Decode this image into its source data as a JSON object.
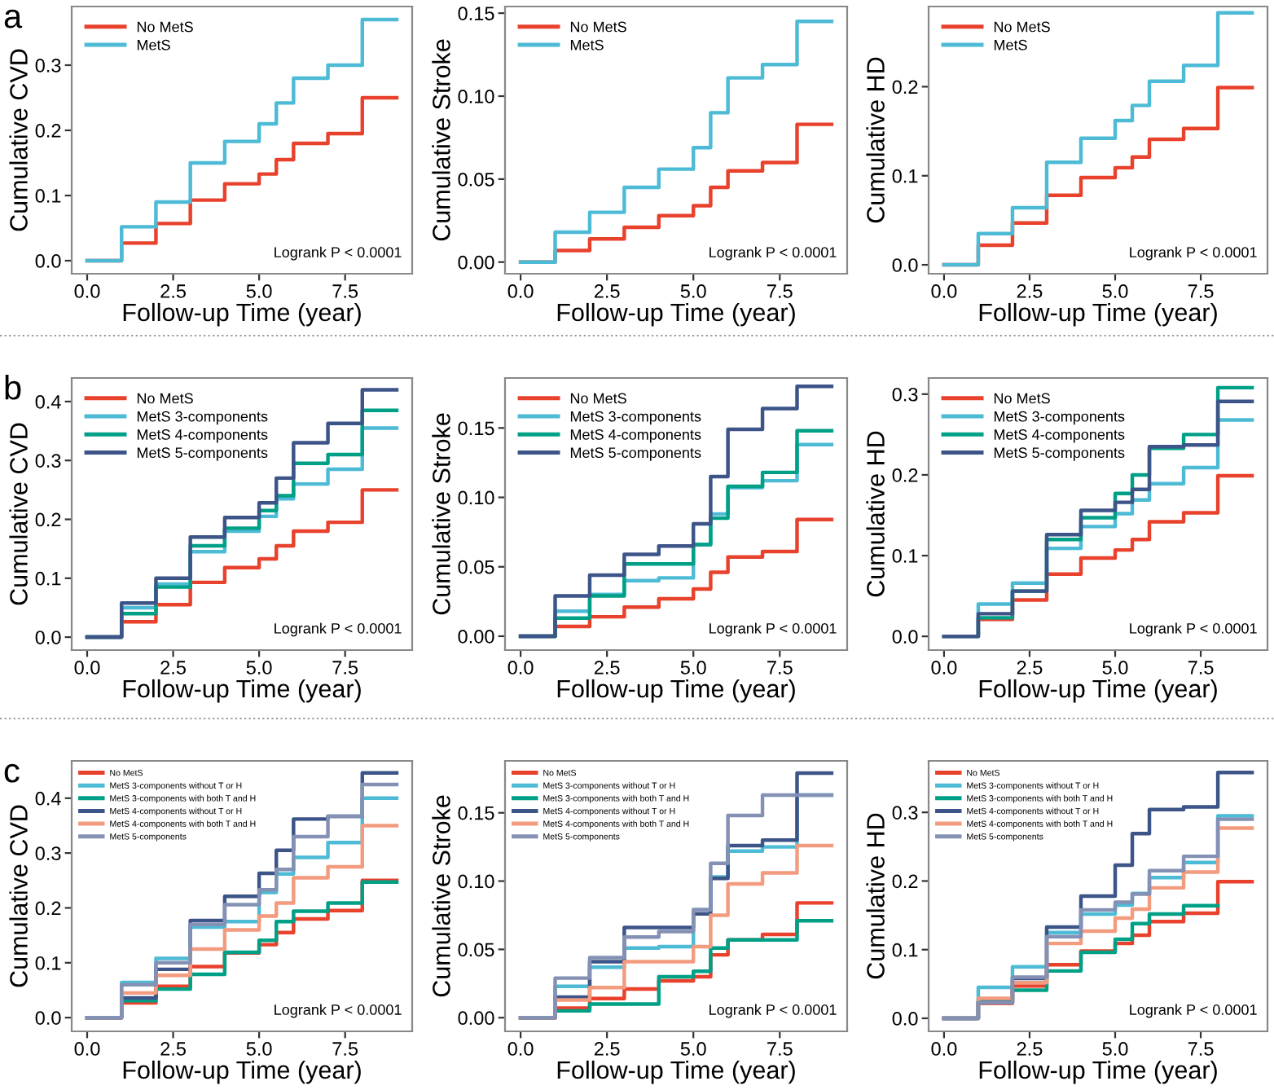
{
  "chart_data": [
    {
      "type": "step",
      "xlabel": "Follow-up Time (year)",
      "ylabel": "Cumulative CVD",
      "annotations": [
        "Logrank P < 0.0001",
        "a"
      ],
      "legend": "top left",
      "grid": false,
      "line_style": "solid",
      "marker": "none",
      "x": [
        0,
        1,
        2,
        3,
        4,
        5,
        5.5,
        6,
        7,
        8,
        9
      ],
      "xlim": [
        -0.45,
        9.45
      ],
      "xticks": [
        {
          "value": 0,
          "label": "0.0"
        },
        {
          "value": 2.5,
          "label": "2.5"
        },
        {
          "value": 5,
          "label": "5.0"
        },
        {
          "value": 7.5,
          "label": "7.5"
        }
      ],
      "ylim": [
        -0.02,
        0.39
      ],
      "yticks": [
        {
          "value": 0,
          "label": "0.0"
        },
        {
          "value": 0.1,
          "label": "0.1"
        },
        {
          "value": 0.2,
          "label": "0.2"
        },
        {
          "value": 0.3,
          "label": "0.3"
        }
      ],
      "series": [
        {
          "name": "No MetS",
          "color": "#e8412c",
          "values": [
            0,
            0.027,
            0.057,
            0.093,
            0.118,
            0.133,
            0.155,
            0.18,
            0.195,
            0.25,
            0.25
          ]
        },
        {
          "name": "MetS",
          "color": "#4dbbd5",
          "values": [
            0,
            0.052,
            0.09,
            0.15,
            0.183,
            0.21,
            0.242,
            0.28,
            0.3,
            0.37,
            0.37
          ]
        }
      ]
    },
    {
      "type": "step",
      "xlabel": "Follow-up Time (year)",
      "ylabel": "Cumulative Stroke",
      "annotations": [
        "Logrank P < 0.0001"
      ],
      "legend": "top left",
      "grid": false,
      "line_style": "solid",
      "marker": "none",
      "x": [
        0,
        1,
        2,
        3,
        4,
        5,
        5.5,
        6,
        7,
        8,
        9
      ],
      "xlim": [
        -0.45,
        9.45
      ],
      "xticks": [
        {
          "value": 0,
          "label": "0.0"
        },
        {
          "value": 2.5,
          "label": "2.5"
        },
        {
          "value": 5,
          "label": "5.0"
        },
        {
          "value": 7.5,
          "label": "7.5"
        }
      ],
      "ylim": [
        -0.007,
        0.154
      ],
      "yticks": [
        {
          "value": 0,
          "label": "0.00"
        },
        {
          "value": 0.05,
          "label": "0.05"
        },
        {
          "value": 0.1,
          "label": "0.10"
        },
        {
          "value": 0.15,
          "label": "0.15"
        }
      ],
      "series": [
        {
          "name": "No MetS",
          "color": "#e8412c",
          "values": [
            0,
            0.007,
            0.014,
            0.021,
            0.028,
            0.034,
            0.045,
            0.055,
            0.06,
            0.083,
            0.083
          ]
        },
        {
          "name": "MetS",
          "color": "#4dbbd5",
          "values": [
            0,
            0.018,
            0.03,
            0.045,
            0.056,
            0.069,
            0.09,
            0.111,
            0.119,
            0.145,
            0.145
          ]
        }
      ]
    },
    {
      "type": "step",
      "xlabel": "Follow-up Time (year)",
      "ylabel": "Cumulative HD",
      "annotations": [
        "Logrank P < 0.0001"
      ],
      "legend": "top left",
      "grid": false,
      "line_style": "solid",
      "marker": "none",
      "x": [
        0,
        1,
        2,
        3,
        4,
        5,
        5.5,
        6,
        7,
        8,
        9
      ],
      "xlim": [
        -0.45,
        9.45
      ],
      "xticks": [
        {
          "value": 0,
          "label": "0.0"
        },
        {
          "value": 2.5,
          "label": "2.5"
        },
        {
          "value": 5,
          "label": "5.0"
        },
        {
          "value": 7.5,
          "label": "7.5"
        }
      ],
      "ylim": [
        -0.01,
        0.29
      ],
      "yticks": [
        {
          "value": 0,
          "label": "0.0"
        },
        {
          "value": 0.1,
          "label": "0.1"
        },
        {
          "value": 0.2,
          "label": "0.2"
        }
      ],
      "series": [
        {
          "name": "No MetS",
          "color": "#e8412c",
          "values": [
            0,
            0.022,
            0.047,
            0.078,
            0.098,
            0.109,
            0.121,
            0.141,
            0.153,
            0.199,
            0.199
          ]
        },
        {
          "name": "MetS",
          "color": "#4dbbd5",
          "values": [
            0,
            0.035,
            0.064,
            0.115,
            0.142,
            0.162,
            0.179,
            0.206,
            0.224,
            0.283,
            0.283
          ]
        }
      ]
    },
    {
      "type": "step",
      "xlabel": "Follow-up Time (year)",
      "ylabel": "Cumulative CVD",
      "annotations": [
        "Logrank P < 0.0001",
        "b"
      ],
      "legend": "top left",
      "grid": false,
      "line_style": "solid",
      "marker": "none",
      "x": [
        0,
        1,
        2,
        3,
        4,
        5,
        5.5,
        6,
        7,
        8,
        9
      ],
      "xlim": [
        -0.45,
        9.45
      ],
      "xticks": [
        {
          "value": 0,
          "label": "0.0"
        },
        {
          "value": 2.5,
          "label": "2.5"
        },
        {
          "value": 5,
          "label": "5.0"
        },
        {
          "value": 7.5,
          "label": "7.5"
        }
      ],
      "ylim": [
        -0.022,
        0.44
      ],
      "yticks": [
        {
          "value": 0,
          "label": "0.0"
        },
        {
          "value": 0.1,
          "label": "0.1"
        },
        {
          "value": 0.2,
          "label": "0.2"
        },
        {
          "value": 0.3,
          "label": "0.3"
        },
        {
          "value": 0.4,
          "label": "0.4"
        }
      ],
      "series": [
        {
          "name": "No MetS",
          "color": "#e8412c",
          "values": [
            0,
            0.026,
            0.055,
            0.093,
            0.118,
            0.133,
            0.155,
            0.18,
            0.195,
            0.25,
            0.25
          ]
        },
        {
          "name": "MetS 3-components",
          "color": "#4dbbd5",
          "values": [
            0,
            0.05,
            0.09,
            0.145,
            0.18,
            0.205,
            0.235,
            0.26,
            0.285,
            0.355,
            0.355
          ]
        },
        {
          "name": "MetS 4-components",
          "color": "#00a087",
          "values": [
            0,
            0.04,
            0.085,
            0.155,
            0.185,
            0.215,
            0.24,
            0.295,
            0.31,
            0.385,
            0.385
          ]
        },
        {
          "name": "MetS 5-components",
          "color": "#3c5488",
          "values": [
            0,
            0.058,
            0.1,
            0.17,
            0.203,
            0.228,
            0.27,
            0.33,
            0.363,
            0.42,
            0.42
          ]
        }
      ]
    },
    {
      "type": "step",
      "xlabel": "Follow-up Time (year)",
      "ylabel": "Cumulative Stroke",
      "annotations": [
        "Logrank P < 0.0001"
      ],
      "legend": "top left",
      "grid": false,
      "line_style": "solid",
      "marker": "none",
      "x": [
        0,
        1,
        2,
        3,
        4,
        5,
        5.5,
        6,
        7,
        8,
        9
      ],
      "xlim": [
        -0.45,
        9.45
      ],
      "xticks": [
        {
          "value": 0,
          "label": "0.0"
        },
        {
          "value": 2.5,
          "label": "2.5"
        },
        {
          "value": 5,
          "label": "5.0"
        },
        {
          "value": 7.5,
          "label": "7.5"
        }
      ],
      "ylim": [
        -0.01,
        0.186
      ],
      "yticks": [
        {
          "value": 0,
          "label": "0.00"
        },
        {
          "value": 0.05,
          "label": "0.05"
        },
        {
          "value": 0.1,
          "label": "0.10"
        },
        {
          "value": 0.15,
          "label": "0.15"
        }
      ],
      "series": [
        {
          "name": "No MetS",
          "color": "#e8412c",
          "values": [
            0,
            0.007,
            0.014,
            0.021,
            0.027,
            0.034,
            0.046,
            0.057,
            0.061,
            0.084,
            0.084
          ]
        },
        {
          "name": "MetS 3-components",
          "color": "#4dbbd5",
          "values": [
            0,
            0.018,
            0.03,
            0.04,
            0.042,
            0.066,
            0.088,
            0.107,
            0.112,
            0.138,
            0.138
          ]
        },
        {
          "name": "MetS 4-components",
          "color": "#00a087",
          "values": [
            0,
            0.013,
            0.029,
            0.052,
            0.052,
            0.066,
            0.085,
            0.108,
            0.118,
            0.148,
            0.148
          ]
        },
        {
          "name": "MetS 5-components",
          "color": "#3c5488",
          "values": [
            0,
            0.029,
            0.044,
            0.059,
            0.065,
            0.081,
            0.115,
            0.149,
            0.164,
            0.18,
            0.18
          ]
        }
      ]
    },
    {
      "type": "step",
      "xlabel": "Follow-up Time (year)",
      "ylabel": "Cumulative HD",
      "annotations": [
        "Logrank P < 0.0001"
      ],
      "legend": "top left",
      "grid": false,
      "line_style": "solid",
      "marker": "none",
      "x": [
        0,
        1,
        2,
        3,
        4,
        5,
        5.5,
        6,
        7,
        8,
        9
      ],
      "xlim": [
        -0.45,
        9.45
      ],
      "xticks": [
        {
          "value": 0,
          "label": "0.0"
        },
        {
          "value": 2.5,
          "label": "2.5"
        },
        {
          "value": 5,
          "label": "5.0"
        },
        {
          "value": 7.5,
          "label": "7.5"
        }
      ],
      "ylim": [
        -0.017,
        0.32
      ],
      "yticks": [
        {
          "value": 0,
          "label": "0.0"
        },
        {
          "value": 0.1,
          "label": "0.1"
        },
        {
          "value": 0.2,
          "label": "0.2"
        },
        {
          "value": 0.3,
          "label": "0.3"
        }
      ],
      "series": [
        {
          "name": "No MetS",
          "color": "#e8412c",
          "values": [
            0,
            0.021,
            0.045,
            0.077,
            0.097,
            0.107,
            0.12,
            0.142,
            0.153,
            0.199,
            0.199
          ]
        },
        {
          "name": "MetS 3-components",
          "color": "#4dbbd5",
          "values": [
            0,
            0.04,
            0.066,
            0.109,
            0.136,
            0.152,
            0.169,
            0.189,
            0.209,
            0.268,
            0.268
          ]
        },
        {
          "name": "MetS 4-components",
          "color": "#00a087",
          "values": [
            0,
            0.023,
            0.056,
            0.12,
            0.147,
            0.177,
            0.2,
            0.233,
            0.25,
            0.308,
            0.308
          ]
        },
        {
          "name": "MetS 5-components",
          "color": "#3c5488",
          "values": [
            0,
            0.028,
            0.056,
            0.126,
            0.156,
            0.166,
            0.182,
            0.235,
            0.237,
            0.291,
            0.291
          ]
        }
      ]
    },
    {
      "type": "step",
      "xlabel": "Follow-up Time (year)",
      "ylabel": "Cumulative CVD",
      "annotations": [
        "Logrank P < 0.0001",
        "c"
      ],
      "legend": "top left",
      "grid": false,
      "line_style": "solid",
      "marker": "none",
      "x": [
        0,
        1,
        2,
        3,
        4,
        5,
        5.5,
        6,
        7,
        8,
        9
      ],
      "xlim": [
        -0.45,
        9.45
      ],
      "xticks": [
        {
          "value": 0,
          "label": "0.0"
        },
        {
          "value": 2.5,
          "label": "2.5"
        },
        {
          "value": 5,
          "label": "5.0"
        },
        {
          "value": 7.5,
          "label": "7.5"
        }
      ],
      "ylim": [
        -0.025,
        0.468
      ],
      "yticks": [
        {
          "value": 0,
          "label": "0.0"
        },
        {
          "value": 0.1,
          "label": "0.1"
        },
        {
          "value": 0.2,
          "label": "0.2"
        },
        {
          "value": 0.3,
          "label": "0.3"
        },
        {
          "value": 0.4,
          "label": "0.4"
        }
      ],
      "series": [
        {
          "name": "No MetS",
          "color": "#e8412c",
          "values": [
            0,
            0.027,
            0.057,
            0.093,
            0.118,
            0.133,
            0.155,
            0.18,
            0.195,
            0.25,
            0.25
          ]
        },
        {
          "name": "MetS 3-components without T or H",
          "color": "#4dbbd5",
          "values": [
            0,
            0.064,
            0.108,
            0.165,
            0.175,
            0.228,
            0.262,
            0.292,
            0.319,
            0.4,
            0.4
          ]
        },
        {
          "name": "MetS 3-components with both T and H",
          "color": "#00a087",
          "values": [
            0,
            0.031,
            0.052,
            0.079,
            0.119,
            0.141,
            0.175,
            0.194,
            0.209,
            0.247,
            0.247
          ]
        },
        {
          "name": "MetS 4-components without T or H",
          "color": "#3c5488",
          "values": [
            0,
            0.036,
            0.088,
            0.177,
            0.221,
            0.263,
            0.305,
            0.362,
            0.367,
            0.446,
            0.446
          ]
        },
        {
          "name": "MetS 4-components with both T and H",
          "color": "#f39b7f",
          "values": [
            0,
            0.045,
            0.077,
            0.125,
            0.16,
            0.185,
            0.209,
            0.255,
            0.275,
            0.35,
            0.35
          ]
        },
        {
          "name": "MetS 5-components",
          "color": "#8491b4",
          "values": [
            0,
            0.06,
            0.1,
            0.17,
            0.206,
            0.233,
            0.27,
            0.33,
            0.367,
            0.425,
            0.425
          ]
        }
      ]
    },
    {
      "type": "step",
      "xlabel": "Follow-up Time (year)",
      "ylabel": "Cumulative Stroke",
      "annotations": [
        "Logrank P < 0.0001"
      ],
      "legend": "top left",
      "grid": false,
      "line_style": "solid",
      "marker": "none",
      "x": [
        0,
        1,
        2,
        3,
        4,
        5,
        5.5,
        6,
        7,
        8,
        9
      ],
      "xlim": [
        -0.45,
        9.45
      ],
      "xticks": [
        {
          "value": 0,
          "label": "0.0"
        },
        {
          "value": 2.5,
          "label": "2.5"
        },
        {
          "value": 5,
          "label": "5.0"
        },
        {
          "value": 7.5,
          "label": "7.5"
        }
      ],
      "ylim": [
        -0.01,
        0.188
      ],
      "yticks": [
        {
          "value": 0,
          "label": "0.00"
        },
        {
          "value": 0.05,
          "label": "0.05"
        },
        {
          "value": 0.1,
          "label": "0.10"
        },
        {
          "value": 0.15,
          "label": "0.15"
        }
      ],
      "series": [
        {
          "name": "No MetS",
          "color": "#e8412c",
          "values": [
            0,
            0.007,
            0.014,
            0.021,
            0.027,
            0.03,
            0.046,
            0.057,
            0.061,
            0.084,
            0.084
          ]
        },
        {
          "name": "MetS 3-components without T or H",
          "color": "#4dbbd5",
          "values": [
            0,
            0.023,
            0.037,
            0.051,
            0.052,
            0.079,
            0.103,
            0.122,
            0.125,
            0.163,
            0.163
          ]
        },
        {
          "name": "MetS 3-components with both T and H",
          "color": "#00a087",
          "values": [
            0,
            0.005,
            0.01,
            0.01,
            0.03,
            0.034,
            0.051,
            0.057,
            0.057,
            0.071,
            0.071
          ]
        },
        {
          "name": "MetS 4-components without T or H",
          "color": "#3c5488",
          "values": [
            0,
            0.015,
            0.041,
            0.066,
            0.066,
            0.076,
            0.102,
            0.126,
            0.13,
            0.179,
            0.179
          ]
        },
        {
          "name": "MetS 4-components with both T and H",
          "color": "#f39b7f",
          "values": [
            0,
            0.013,
            0.022,
            0.041,
            0.041,
            0.052,
            0.075,
            0.098,
            0.106,
            0.126,
            0.126
          ]
        },
        {
          "name": "MetS 5-components",
          "color": "#8491b4",
          "values": [
            0,
            0.029,
            0.044,
            0.059,
            0.063,
            0.079,
            0.113,
            0.148,
            0.163,
            0.163,
            0.163
          ]
        }
      ]
    },
    {
      "type": "step",
      "xlabel": "Follow-up Time (year)",
      "ylabel": "Cumulative HD",
      "annotations": [
        "Logrank P < 0.0001"
      ],
      "legend": "top left",
      "grid": false,
      "line_style": "solid",
      "marker": "none",
      "x": [
        0,
        1,
        2,
        3,
        4,
        5,
        5.5,
        6,
        7,
        8,
        9
      ],
      "xlim": [
        -0.45,
        9.45
      ],
      "xticks": [
        {
          "value": 0,
          "label": "0.0"
        },
        {
          "value": 2.5,
          "label": "2.5"
        },
        {
          "value": 5,
          "label": "5.0"
        },
        {
          "value": 7.5,
          "label": "7.5"
        }
      ],
      "ylim": [
        -0.019,
        0.375
      ],
      "yticks": [
        {
          "value": 0,
          "label": "0.0"
        },
        {
          "value": 0.1,
          "label": "0.1"
        },
        {
          "value": 0.2,
          "label": "0.2"
        },
        {
          "value": 0.3,
          "label": "0.3"
        }
      ],
      "series": [
        {
          "name": "No MetS",
          "color": "#e8412c",
          "values": [
            0,
            0.022,
            0.047,
            0.078,
            0.098,
            0.109,
            0.121,
            0.141,
            0.153,
            0.199,
            0.199
          ]
        },
        {
          "name": "MetS 3-components without T or H",
          "color": "#4dbbd5",
          "values": [
            0,
            0.045,
            0.075,
            0.125,
            0.152,
            0.165,
            0.182,
            0.205,
            0.227,
            0.295,
            0.295
          ]
        },
        {
          "name": "MetS 3-components with both T and H",
          "color": "#00a087",
          "x": [
            0,
            1,
            2,
            3,
            4,
            5,
            5.5,
            6,
            7,
            8
          ],
          "values": [
            0,
            0.027,
            0.041,
            0.069,
            0.096,
            0.115,
            0.138,
            0.152,
            0.164,
            0.164
          ]
        },
        {
          "name": "MetS 4-components without T or H",
          "color": "#3c5488",
          "values": [
            0,
            0.023,
            0.058,
            0.133,
            0.178,
            0.223,
            0.269,
            0.304,
            0.308,
            0.358,
            0.358
          ]
        },
        {
          "name": "MetS 4-components with both T and H",
          "color": "#f39b7f",
          "values": [
            0,
            0.029,
            0.052,
            0.109,
            0.127,
            0.146,
            0.159,
            0.19,
            0.213,
            0.277,
            0.277
          ]
        },
        {
          "name": "MetS 5-components",
          "color": "#8491b4",
          "values": [
            0,
            0.023,
            0.06,
            0.119,
            0.158,
            0.169,
            0.181,
            0.215,
            0.236,
            0.29,
            0.29
          ]
        }
      ]
    }
  ]
}
